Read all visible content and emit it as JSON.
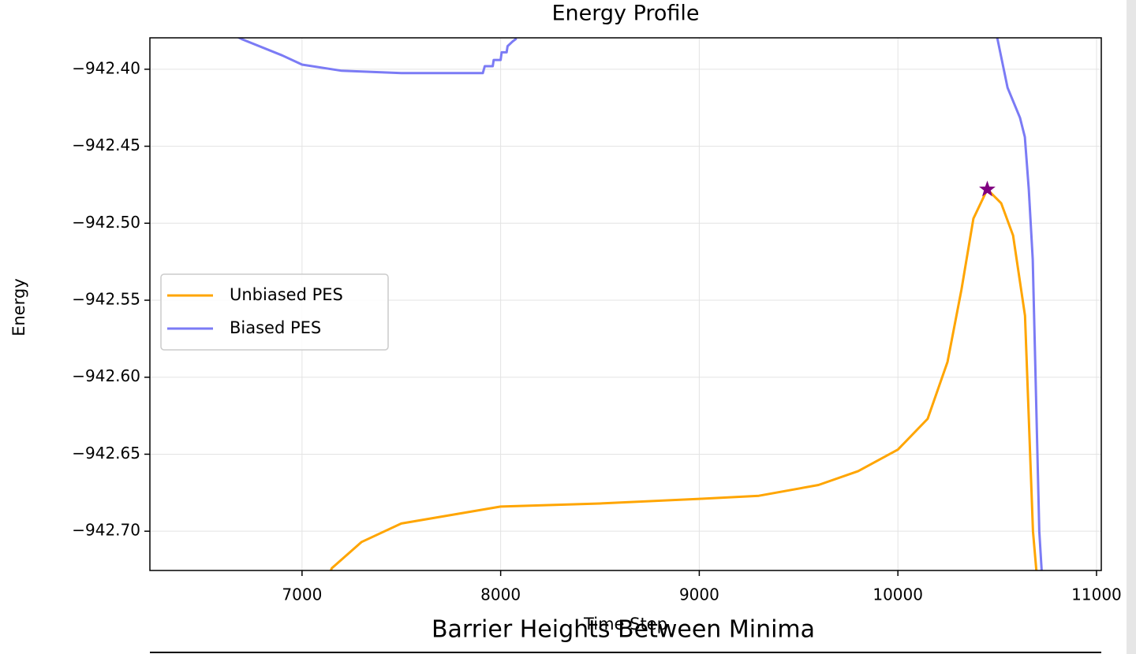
{
  "chart_data": {
    "type": "line",
    "title": "Energy Profile",
    "x_label": "Time Step",
    "y_label": "Energy",
    "xlim": [
      6234,
      11024
    ],
    "ylim": [
      -942.7255,
      -942.3796
    ],
    "xticks": [
      7000,
      8000,
      9000,
      10000,
      11000
    ],
    "yticks": [
      {
        "value": -942.4,
        "label": "−942.40"
      },
      {
        "value": -942.45,
        "label": "−942.45"
      },
      {
        "value": -942.5,
        "label": "−942.50"
      },
      {
        "value": -942.55,
        "label": "−942.55"
      },
      {
        "value": -942.6,
        "label": "−942.60"
      },
      {
        "value": -942.65,
        "label": "−942.65"
      },
      {
        "value": -942.7,
        "label": "−942.70"
      }
    ],
    "grid": true,
    "legend": "center left",
    "series": [
      {
        "name": "Unbiased PES",
        "color": "#ffa500",
        "x": [
          7100,
          7150,
          7300,
          7500,
          8000,
          8500,
          9000,
          9300,
          9600,
          9800,
          10000,
          10150,
          10250,
          10320,
          10380,
          10450,
          10520,
          10580,
          10640,
          10680,
          10720
        ],
        "values": [
          -942.74,
          -942.724,
          -942.707,
          -942.695,
          -942.684,
          -942.682,
          -942.679,
          -942.677,
          -942.67,
          -942.661,
          -942.647,
          -942.627,
          -942.59,
          -942.543,
          -942.497,
          -942.478,
          -942.487,
          -942.508,
          -942.56,
          -942.7,
          -942.76
        ]
      },
      {
        "name": "Biased PES",
        "color": "#7b7bf5",
        "x": [
          6600,
          6700,
          6900,
          7000,
          7200,
          7500,
          7910,
          7920,
          7960,
          7965,
          8000,
          8005,
          8030,
          8035,
          8060,
          8080,
          8100,
          10480,
          10500,
          10552,
          10615,
          10639,
          10659,
          10679,
          10712,
          10740
        ],
        "values": [
          -942.374,
          -942.3806,
          -942.391,
          -942.397,
          -942.401,
          -942.4025,
          -942.4025,
          -942.398,
          -942.398,
          -942.394,
          -942.394,
          -942.389,
          -942.389,
          -942.385,
          -942.382,
          -942.38,
          null,
          -942.37,
          -942.3796,
          -942.412,
          -942.4316,
          -942.444,
          -942.478,
          -942.5235,
          -942.7,
          -942.76
        ]
      }
    ],
    "marker": {
      "x": 10450,
      "y": -942.478,
      "color": "#800080"
    }
  },
  "section_heading": "Barrier Heights Between Minima"
}
